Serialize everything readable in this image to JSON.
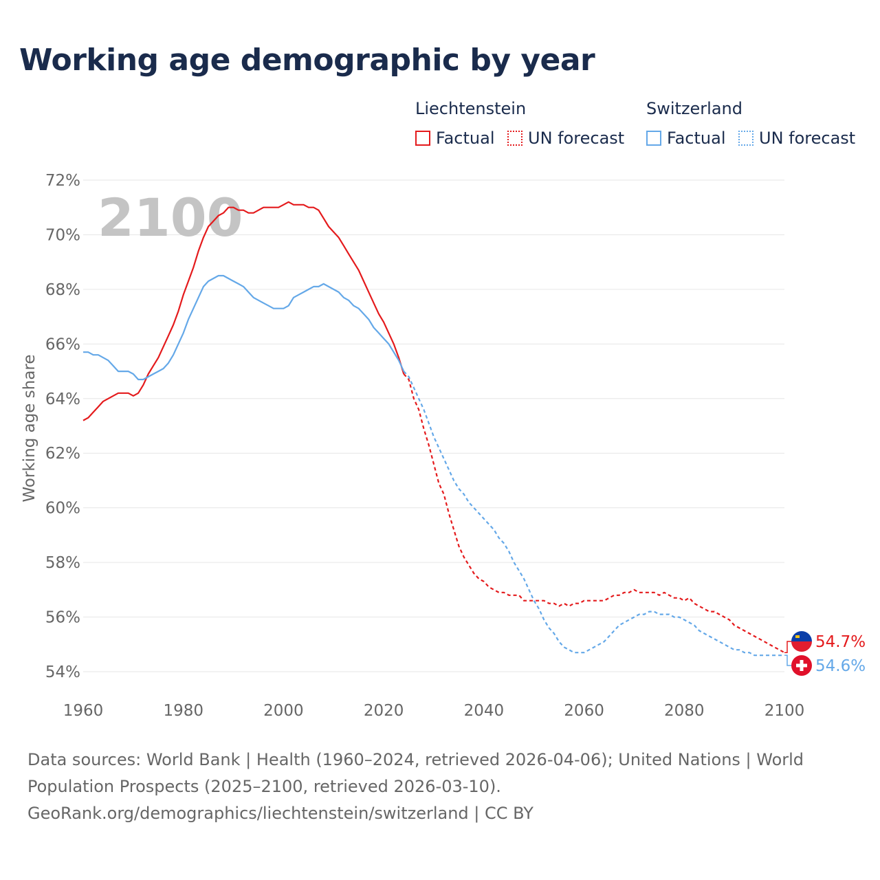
{
  "title": "Working age demographic by year",
  "legend": {
    "groups": [
      {
        "name": "Liechtenstein",
        "color": "#e41a1c",
        "factual_label": "Factual",
        "forecast_label": "UN forecast"
      },
      {
        "name": "Switzerland",
        "color": "#64a8e8",
        "factual_label": "Factual",
        "forecast_label": "UN forecast"
      }
    ]
  },
  "year_display": "2100",
  "end_labels": {
    "liechtenstein": "54.7%",
    "switzerland": "54.6%"
  },
  "icons": {
    "liechtenstein": "liechtenstein-flag-icon",
    "switzerland": "switzerland-flag-icon"
  },
  "footer": {
    "line1": "Data sources: World Bank | Health (1960–2024, retrieved 2026-04-06); United Nations | World",
    "line2": "Population Prospects (2025–2100, retrieved 2026-03-10).",
    "line3": "GeoRank.org/demographics/liechtenstein/switzerland | CC BY"
  },
  "chart_data": {
    "type": "line",
    "title": "Working age demographic by year",
    "xlabel": "",
    "ylabel": "Working age share",
    "xlim": [
      1960,
      2100
    ],
    "ylim": [
      54,
      72
    ],
    "xticks": [
      1960,
      1980,
      2000,
      2020,
      2040,
      2060,
      2080,
      2100
    ],
    "yticks": [
      54,
      56,
      58,
      60,
      62,
      64,
      66,
      68,
      70,
      72
    ],
    "ytick_labels": [
      "54%",
      "56%",
      "58%",
      "60%",
      "62%",
      "64%",
      "66%",
      "68%",
      "70%",
      "72%"
    ],
    "xtick_labels": [
      "1960",
      "1980",
      "2000",
      "2020",
      "2040",
      "2060",
      "2080",
      "2100"
    ],
    "series": [
      {
        "name": "Liechtenstein",
        "color": "#e41a1c",
        "factual": {
          "x": [
            1960,
            1961,
            1962,
            1963,
            1964,
            1965,
            1966,
            1967,
            1968,
            1969,
            1970,
            1971,
            1972,
            1973,
            1974,
            1975,
            1976,
            1977,
            1978,
            1979,
            1980,
            1981,
            1982,
            1983,
            1984,
            1985,
            1986,
            1987,
            1988,
            1989,
            1990,
            1991,
            1992,
            1993,
            1994,
            1995,
            1996,
            1997,
            1998,
            1999,
            2000,
            2001,
            2002,
            2003,
            2004,
            2005,
            2006,
            2007,
            2008,
            2009,
            2010,
            2011,
            2012,
            2013,
            2014,
            2015,
            2016,
            2017,
            2018,
            2019,
            2020,
            2021,
            2022,
            2023,
            2024
          ],
          "y": [
            63.2,
            63.3,
            63.5,
            63.7,
            63.9,
            64.0,
            64.1,
            64.2,
            64.2,
            64.2,
            64.1,
            64.2,
            64.5,
            64.9,
            65.2,
            65.5,
            65.9,
            66.3,
            66.7,
            67.2,
            67.8,
            68.3,
            68.8,
            69.4,
            69.9,
            70.3,
            70.5,
            70.7,
            70.8,
            71.0,
            71.0,
            70.9,
            70.9,
            70.8,
            70.8,
            70.9,
            71.0,
            71.0,
            71.0,
            71.0,
            71.1,
            71.2,
            71.1,
            71.1,
            71.1,
            71.0,
            71.0,
            70.9,
            70.6,
            70.3,
            70.1,
            69.9,
            69.6,
            69.3,
            69.0,
            68.7,
            68.3,
            67.9,
            67.5,
            67.1,
            66.8,
            66.4,
            66.0,
            65.5,
            64.9
          ]
        },
        "forecast": {
          "x": [
            2024,
            2025,
            2026,
            2027,
            2028,
            2029,
            2030,
            2031,
            2032,
            2033,
            2034,
            2035,
            2036,
            2037,
            2038,
            2039,
            2040,
            2041,
            2042,
            2043,
            2044,
            2045,
            2046,
            2047,
            2048,
            2049,
            2050,
            2051,
            2052,
            2053,
            2054,
            2055,
            2056,
            2057,
            2058,
            2059,
            2060,
            2061,
            2062,
            2063,
            2064,
            2065,
            2066,
            2067,
            2068,
            2069,
            2070,
            2071,
            2072,
            2073,
            2074,
            2075,
            2076,
            2077,
            2078,
            2079,
            2080,
            2081,
            2082,
            2083,
            2084,
            2085,
            2086,
            2087,
            2088,
            2089,
            2090,
            2091,
            2092,
            2093,
            2094,
            2095,
            2096,
            2097,
            2098,
            2099,
            2100
          ],
          "y": [
            64.9,
            64.7,
            64.0,
            63.6,
            62.9,
            62.3,
            61.6,
            60.9,
            60.5,
            59.8,
            59.2,
            58.6,
            58.2,
            57.9,
            57.6,
            57.4,
            57.3,
            57.1,
            57.0,
            56.9,
            56.9,
            56.8,
            56.8,
            56.8,
            56.6,
            56.6,
            56.6,
            56.6,
            56.6,
            56.5,
            56.5,
            56.4,
            56.5,
            56.4,
            56.5,
            56.5,
            56.6,
            56.6,
            56.6,
            56.6,
            56.6,
            56.7,
            56.8,
            56.8,
            56.9,
            56.9,
            57.0,
            56.9,
            56.9,
            56.9,
            56.9,
            56.8,
            56.9,
            56.8,
            56.7,
            56.7,
            56.6,
            56.7,
            56.5,
            56.4,
            56.3,
            56.2,
            56.2,
            56.1,
            56.0,
            55.9,
            55.7,
            55.6,
            55.5,
            55.4,
            55.3,
            55.2,
            55.1,
            55.0,
            54.9,
            54.8,
            54.7
          ]
        }
      },
      {
        "name": "Switzerland",
        "color": "#64a8e8",
        "factual": {
          "x": [
            1960,
            1961,
            1962,
            1963,
            1964,
            1965,
            1966,
            1967,
            1968,
            1969,
            1970,
            1971,
            1972,
            1973,
            1974,
            1975,
            1976,
            1977,
            1978,
            1979,
            1980,
            1981,
            1982,
            1983,
            1984,
            1985,
            1986,
            1987,
            1988,
            1989,
            1990,
            1991,
            1992,
            1993,
            1994,
            1995,
            1996,
            1997,
            1998,
            1999,
            2000,
            2001,
            2002,
            2003,
            2004,
            2005,
            2006,
            2007,
            2008,
            2009,
            2010,
            2011,
            2012,
            2013,
            2014,
            2015,
            2016,
            2017,
            2018,
            2019,
            2020,
            2021,
            2022,
            2023,
            2024
          ],
          "y": [
            65.7,
            65.7,
            65.6,
            65.6,
            65.5,
            65.4,
            65.2,
            65.0,
            65.0,
            65.0,
            64.9,
            64.7,
            64.7,
            64.8,
            64.9,
            65.0,
            65.1,
            65.3,
            65.6,
            66.0,
            66.4,
            66.9,
            67.3,
            67.7,
            68.1,
            68.3,
            68.4,
            68.5,
            68.5,
            68.4,
            68.3,
            68.2,
            68.1,
            67.9,
            67.7,
            67.6,
            67.5,
            67.4,
            67.3,
            67.3,
            67.3,
            67.4,
            67.7,
            67.8,
            67.9,
            68.0,
            68.1,
            68.1,
            68.2,
            68.1,
            68.0,
            67.9,
            67.7,
            67.6,
            67.4,
            67.3,
            67.1,
            66.9,
            66.6,
            66.4,
            66.2,
            66.0,
            65.7,
            65.4,
            65.0
          ]
        },
        "forecast": {
          "x": [
            2024,
            2025,
            2026,
            2027,
            2028,
            2029,
            2030,
            2031,
            2032,
            2033,
            2034,
            2035,
            2036,
            2037,
            2038,
            2039,
            2040,
            2041,
            2042,
            2043,
            2044,
            2045,
            2046,
            2047,
            2048,
            2049,
            2050,
            2051,
            2052,
            2053,
            2054,
            2055,
            2056,
            2057,
            2058,
            2059,
            2060,
            2061,
            2062,
            2063,
            2064,
            2065,
            2066,
            2067,
            2068,
            2069,
            2070,
            2071,
            2072,
            2073,
            2074,
            2075,
            2076,
            2077,
            2078,
            2079,
            2080,
            2081,
            2082,
            2083,
            2084,
            2085,
            2086,
            2087,
            2088,
            2089,
            2090,
            2091,
            2092,
            2093,
            2094,
            2095,
            2096,
            2097,
            2098,
            2099,
            2100
          ],
          "y": [
            65.0,
            64.8,
            64.4,
            64.0,
            63.6,
            63.1,
            62.6,
            62.2,
            61.8,
            61.4,
            61.0,
            60.7,
            60.5,
            60.2,
            60.0,
            59.8,
            59.6,
            59.4,
            59.2,
            58.9,
            58.7,
            58.4,
            58.0,
            57.7,
            57.4,
            57.0,
            56.6,
            56.3,
            55.9,
            55.6,
            55.4,
            55.1,
            54.9,
            54.8,
            54.7,
            54.7,
            54.7,
            54.8,
            54.9,
            55.0,
            55.1,
            55.3,
            55.5,
            55.7,
            55.8,
            55.9,
            56.0,
            56.1,
            56.1,
            56.2,
            56.2,
            56.1,
            56.1,
            56.1,
            56.0,
            56.0,
            55.9,
            55.8,
            55.7,
            55.5,
            55.4,
            55.3,
            55.2,
            55.1,
            55.0,
            54.9,
            54.8,
            54.8,
            54.7,
            54.7,
            54.6,
            54.6,
            54.6,
            54.6,
            54.6,
            54.6,
            54.6
          ]
        }
      }
    ]
  }
}
